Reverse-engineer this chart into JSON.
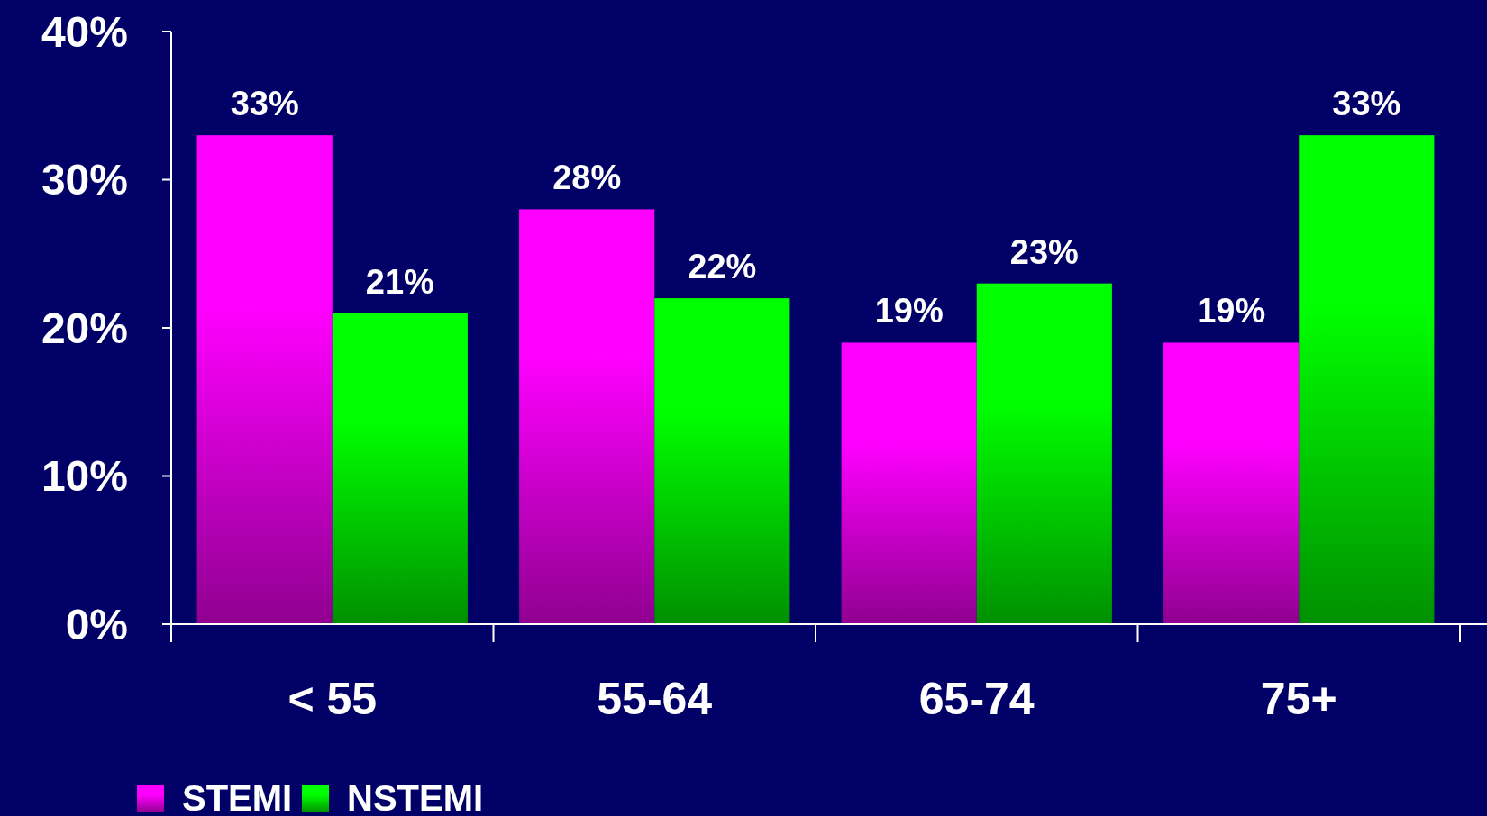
{
  "chart_data": {
    "type": "bar",
    "categories": [
      "< 55",
      "55-64",
      "65-74",
      "75+"
    ],
    "series": [
      {
        "name": "STEMI",
        "color": "#ff00ff",
        "values": [
          33,
          28,
          19,
          19
        ],
        "value_labels": [
          "33%",
          "28%",
          "19%",
          "19%"
        ]
      },
      {
        "name": "NSTEMI",
        "color": "#00ff00",
        "values": [
          21,
          22,
          23,
          33
        ],
        "value_labels": [
          "21%",
          "22%",
          "23%",
          "33%"
        ]
      }
    ],
    "ylim": [
      0,
      40
    ],
    "yticks": [
      {
        "value": 0,
        "label": "0%"
      },
      {
        "value": 10,
        "label": "10%"
      },
      {
        "value": 20,
        "label": "20%"
      },
      {
        "value": 30,
        "label": "30%"
      },
      {
        "value": 40,
        "label": "40%"
      }
    ],
    "grid": false,
    "legend": "bottom left"
  }
}
